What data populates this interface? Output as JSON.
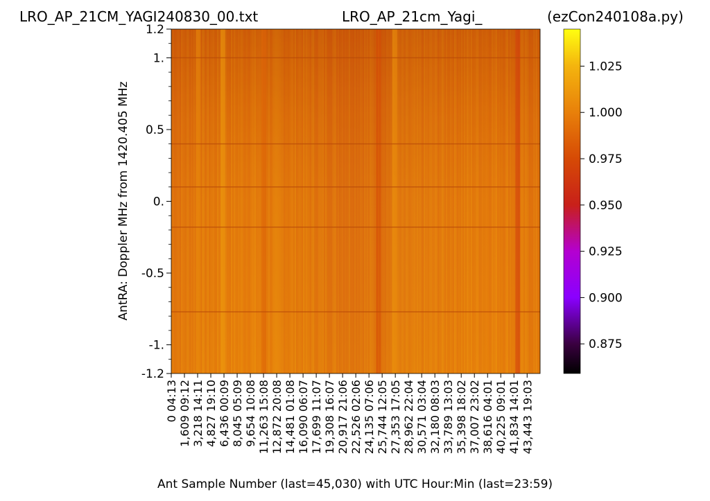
{
  "titles": {
    "left": "LRO_AP_21CM_YAGI240830_00.txt",
    "center": "LRO_AP_21cm_Yagi_",
    "right": "(ezCon240108a.py)"
  },
  "chart_data": {
    "type": "heatmap",
    "ylabel": "AntRA:  Doppler MHz from 1420.405 MHz",
    "xlabel": "Ant Sample Number (last=45,030) with UTC Hour:Min (last=23:59)",
    "ylim": [
      -1.2,
      1.2
    ],
    "xlim": [
      0,
      45030
    ],
    "y_tick_values": [
      1.2,
      1.0,
      0.5,
      0.0,
      -0.5,
      -1.0,
      -1.2
    ],
    "y_tick_labels": [
      "1.2",
      "1.",
      "0.5",
      "0.",
      "-0.5",
      "-1.",
      "-1.2"
    ],
    "x_ticks": [
      {
        "sample": 0,
        "label": "0  04:13"
      },
      {
        "sample": 1609,
        "label": "1,609  09:12"
      },
      {
        "sample": 3218,
        "label": "3,218  14:11"
      },
      {
        "sample": 4827,
        "label": "4,827  19:10"
      },
      {
        "sample": 6436,
        "label": "6,436  00:09"
      },
      {
        "sample": 8045,
        "label": "8,045  05:09"
      },
      {
        "sample": 9654,
        "label": "9,654  10:08"
      },
      {
        "sample": 11263,
        "label": "11,263  15:08"
      },
      {
        "sample": 12872,
        "label": "12,872  20:08"
      },
      {
        "sample": 14481,
        "label": "14,481  01:08"
      },
      {
        "sample": 16090,
        "label": "16,090  06:07"
      },
      {
        "sample": 17699,
        "label": "17,699  11:07"
      },
      {
        "sample": 19308,
        "label": "19,308  16:07"
      },
      {
        "sample": 20917,
        "label": "20,917  21:06"
      },
      {
        "sample": 22526,
        "label": "22,526  02:06"
      },
      {
        "sample": 24135,
        "label": "24,135  07:06"
      },
      {
        "sample": 25744,
        "label": "25,744  12:05"
      },
      {
        "sample": 27353,
        "label": "27,353  17:05"
      },
      {
        "sample": 28962,
        "label": "28,962  22:04"
      },
      {
        "sample": 30571,
        "label": "30,571  03:04"
      },
      {
        "sample": 32180,
        "label": "32,180  08:03"
      },
      {
        "sample": 33789,
        "label": "33,789  13:03"
      },
      {
        "sample": 35398,
        "label": "35,398  18:02"
      },
      {
        "sample": 37007,
        "label": "37,007  23:02"
      },
      {
        "sample": 38616,
        "label": "38,616  04:01"
      },
      {
        "sample": 40225,
        "label": "40,225  09:01"
      },
      {
        "sample": 41834,
        "label": "41,834  14:01"
      },
      {
        "sample": 43443,
        "label": "43,443  19:03"
      }
    ],
    "colorbar": {
      "colormap": "gnuplot",
      "range": [
        0.859,
        1.045
      ],
      "ticks": [
        0.875,
        0.9,
        0.925,
        0.95,
        0.975,
        1.0,
        1.025
      ],
      "tick_labels": [
        "0.875",
        "0.900",
        "0.925",
        "0.950",
        "0.975",
        "1.000",
        "1.025"
      ]
    },
    "horizontal_lines_mhz": [
      1.0,
      0.4,
      0.1,
      -0.18,
      -0.77
    ],
    "column_features": [
      {
        "sample": 3000,
        "value": 1.005
      },
      {
        "sample": 6000,
        "value": 1.015
      },
      {
        "sample": 11000,
        "value": 0.985
      },
      {
        "sample": 25000,
        "value": 0.975
      },
      {
        "sample": 27000,
        "value": 1.01
      },
      {
        "sample": 42000,
        "value": 0.965
      }
    ],
    "color_scale_points": [
      {
        "value": 0.859,
        "color": "#000000"
      },
      {
        "value": 0.875,
        "color": "#3a0040"
      },
      {
        "value": 0.9,
        "color": "#8a00ff"
      },
      {
        "value": 0.925,
        "color": "#b400d0"
      },
      {
        "value": 0.95,
        "color": "#c8201a"
      },
      {
        "value": 0.975,
        "color": "#d64a05"
      },
      {
        "value": 1.0,
        "color": "#e8800a"
      },
      {
        "value": 1.025,
        "color": "#f4b40e"
      },
      {
        "value": 1.045,
        "color": "#ffff10"
      }
    ]
  }
}
